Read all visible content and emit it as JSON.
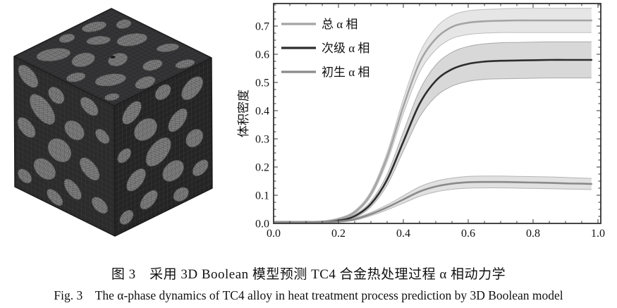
{
  "figure": {
    "caption_zh": "图 3　采用 3D Boolean 模型预测 TC4 合金热处理过程 α 相动力学",
    "caption_en": "Fig. 3　The α-phase dynamics of TC4 alloy in heat treatment process prediction by 3D Boolean model"
  },
  "cube": {
    "description": "3D Boolean model microstructure cube with alpha-phase ellipsoidal particles on meshed faces",
    "face_color_top": "#303032",
    "face_color_left": "#2b2b2b",
    "face_color_right": "#242425",
    "particle_color": "#646464",
    "mesh_color": "#4a4a4a"
  },
  "chart_data": {
    "type": "line",
    "title": "",
    "xlabel": "",
    "ylabel": "体积密度",
    "xlim": [
      0,
      1.0
    ],
    "ylim": [
      0,
      0.78
    ],
    "grid": false,
    "legend_position": "top-left",
    "frame_color": "#333333",
    "x_major_ticks": [
      0,
      0.2,
      0.4,
      0.6,
      0.8,
      1.0
    ],
    "x_tick_labels": [
      "0.0",
      "0.2",
      "0.4",
      "0.6",
      "0.8",
      "1.0"
    ],
    "x_minor_step": 0.05,
    "y_major_ticks": [
      0,
      0.1,
      0.2,
      0.3,
      0.4,
      0.5,
      0.6,
      0.7
    ],
    "y_tick_labels": [
      "0.0",
      "0.1",
      "0.2",
      "0.3",
      "0.4",
      "0.5",
      "0.6",
      "0.7"
    ],
    "y_minor_step": 0.025,
    "x": [
      0,
      0.05,
      0.1,
      0.15,
      0.2,
      0.25,
      0.3,
      0.35,
      0.4,
      0.45,
      0.5,
      0.55,
      0.6,
      0.65,
      0.7,
      0.75,
      0.8,
      0.85,
      0.9,
      0.95,
      0.98
    ],
    "series": [
      {
        "name": "总 α 相",
        "color": "#a4a4a4",
        "band_color": "#e6e6e6",
        "edge_color": "#bdbdbd",
        "mid": [
          0.005,
          0.005,
          0.005,
          0.006,
          0.015,
          0.04,
          0.105,
          0.235,
          0.415,
          0.57,
          0.655,
          0.697,
          0.712,
          0.717,
          0.719,
          0.72,
          0.72,
          0.72,
          0.72,
          0.72,
          0.72
        ],
        "low": [
          0.002,
          0.002,
          0.002,
          0.003,
          0.011,
          0.035,
          0.096,
          0.219,
          0.389,
          0.536,
          0.616,
          0.656,
          0.67,
          0.675,
          0.677,
          0.677,
          0.677,
          0.677,
          0.677,
          0.677,
          0.677
        ],
        "high": [
          0.008,
          0.008,
          0.008,
          0.009,
          0.019,
          0.045,
          0.114,
          0.251,
          0.441,
          0.604,
          0.694,
          0.738,
          0.754,
          0.759,
          0.761,
          0.763,
          0.763,
          0.763,
          0.763,
          0.763,
          0.763
        ]
      },
      {
        "name": "次级 α 相",
        "color": "#2d2d2d",
        "band_color": "#d8d8d8",
        "edge_color": "#a9a9a9",
        "mid": [
          0.002,
          0.002,
          0.003,
          0.004,
          0.01,
          0.026,
          0.069,
          0.155,
          0.29,
          0.424,
          0.506,
          0.547,
          0.566,
          0.574,
          0.577,
          0.578,
          0.579,
          0.58,
          0.58,
          0.58,
          0.58
        ],
        "low": [
          0.0,
          0.0,
          0.0,
          0.001,
          0.006,
          0.02,
          0.059,
          0.136,
          0.257,
          0.377,
          0.45,
          0.487,
          0.504,
          0.511,
          0.513,
          0.514,
          0.515,
          0.516,
          0.516,
          0.516,
          0.516
        ],
        "high": [
          0.005,
          0.005,
          0.006,
          0.007,
          0.014,
          0.032,
          0.079,
          0.174,
          0.324,
          0.472,
          0.562,
          0.607,
          0.628,
          0.637,
          0.641,
          0.642,
          0.643,
          0.644,
          0.644,
          0.644,
          0.644
        ]
      },
      {
        "name": "初生 α 相",
        "color": "#8a8a8a",
        "band_color": "#e1e1e1",
        "edge_color": "#b5b5b5",
        "mid": [
          0.004,
          0.004,
          0.004,
          0.005,
          0.007,
          0.015,
          0.033,
          0.057,
          0.085,
          0.113,
          0.131,
          0.141,
          0.146,
          0.147,
          0.147,
          0.146,
          0.145,
          0.144,
          0.142,
          0.141,
          0.14
        ],
        "low": [
          0.002,
          0.002,
          0.002,
          0.002,
          0.004,
          0.011,
          0.027,
          0.048,
          0.072,
          0.096,
          0.112,
          0.121,
          0.125,
          0.126,
          0.126,
          0.125,
          0.124,
          0.123,
          0.122,
          0.121,
          0.12
        ],
        "high": [
          0.007,
          0.007,
          0.007,
          0.008,
          0.01,
          0.019,
          0.039,
          0.066,
          0.098,
          0.13,
          0.15,
          0.161,
          0.167,
          0.168,
          0.168,
          0.167,
          0.166,
          0.165,
          0.163,
          0.161,
          0.16
        ]
      }
    ]
  }
}
